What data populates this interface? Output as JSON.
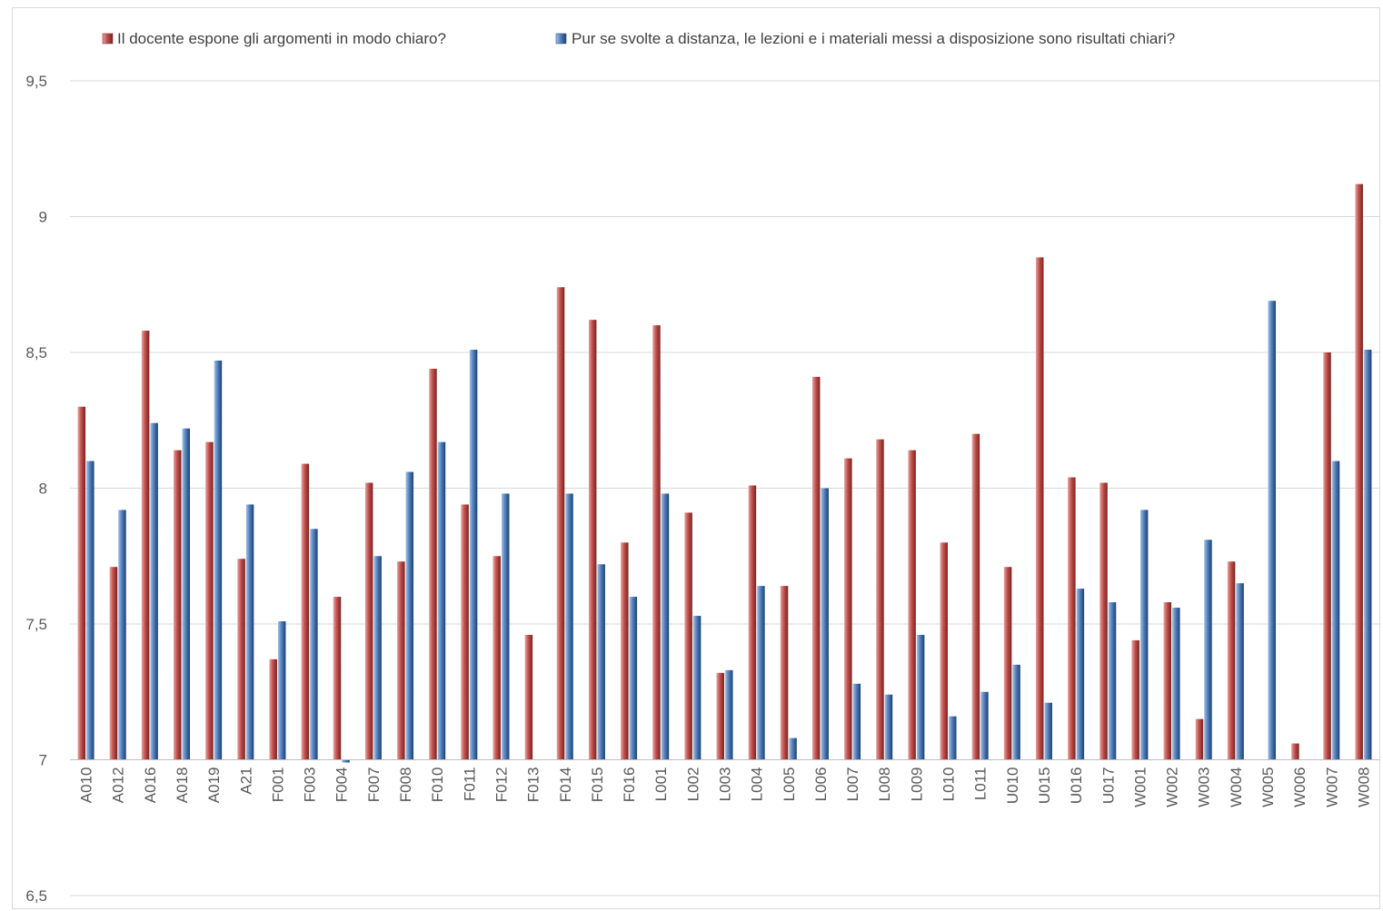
{
  "chart_data": {
    "type": "bar",
    "ylim": [
      6.5,
      9.5
    ],
    "yticks": [
      "6,5",
      "7",
      "7,5",
      "8",
      "8,5",
      "9",
      "9,5"
    ],
    "ytick_values": [
      6.5,
      7,
      7.5,
      8,
      8.5,
      9,
      9.5
    ],
    "baseline": 7,
    "grid": true,
    "legend_position": "top",
    "categories": [
      "A010",
      "A012",
      "A016",
      "A018",
      "A019",
      "A21",
      "F001",
      "F003",
      "F004",
      "F007",
      "F008",
      "F010",
      "F011",
      "F012",
      "F013",
      "F014",
      "F015",
      "F016",
      "L001",
      "L002",
      "L003",
      "L004",
      "L005",
      "L006",
      "L007",
      "L008",
      "L009",
      "L010",
      "L011",
      "U010",
      "U015",
      "U016",
      "U017",
      "W001",
      "W002",
      "W003",
      "W004",
      "W005",
      "W006",
      "W007",
      "W008"
    ],
    "series": [
      {
        "name": "Il docente espone gli argomenti in modo chiaro?",
        "color": "#c0504d",
        "values": [
          8.3,
          7.71,
          8.58,
          8.14,
          8.17,
          7.74,
          7.37,
          8.09,
          7.6,
          8.02,
          7.73,
          8.44,
          7.94,
          7.75,
          7.46,
          8.74,
          8.62,
          7.8,
          8.6,
          7.91,
          7.32,
          8.01,
          7.64,
          8.41,
          8.11,
          8.18,
          8.14,
          7.8,
          8.2,
          7.71,
          8.85,
          8.04,
          8.02,
          7.44,
          7.58,
          7.15,
          7.73,
          null,
          7.06,
          8.5,
          9.12
        ]
      },
      {
        "name": "Pur se svolte a distanza, le lezioni e i materiali messi a disposizione sono risultati chiari?",
        "color": "#4f81bd",
        "values": [
          8.1,
          7.92,
          8.24,
          8.22,
          8.47,
          7.94,
          7.51,
          7.85,
          6.99,
          7.75,
          8.06,
          8.17,
          8.51,
          7.98,
          null,
          7.98,
          7.72,
          7.6,
          7.98,
          7.53,
          7.33,
          7.64,
          7.08,
          8.0,
          7.28,
          7.24,
          7.46,
          7.16,
          7.25,
          7.35,
          7.21,
          7.63,
          7.58,
          7.92,
          7.56,
          7.81,
          7.65,
          8.69,
          null,
          8.1,
          8.51
        ]
      }
    ]
  }
}
